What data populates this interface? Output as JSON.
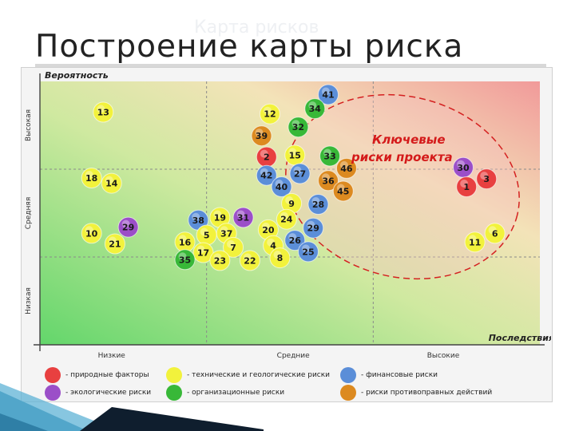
{
  "header": {
    "ghost_title": "Карта рисков",
    "title": "Построение карты риска"
  },
  "chart_data": {
    "type": "scatter",
    "ylabel": "Вероятность",
    "xlabel": "Последствия",
    "x_categories": [
      "Низкие",
      "Средние",
      "Высокие"
    ],
    "y_categories": [
      "Низкая",
      "Средняя",
      "Высокая"
    ],
    "annotation": "Ключевые риски проекта",
    "categories": {
      "natural": {
        "label": "- природные факторы",
        "color": "#e84040"
      },
      "technical": {
        "label": "- технические и геологические риски",
        "color": "#f2f23c"
      },
      "financial": {
        "label": "- финансовые риски",
        "color": "#5b8ed8"
      },
      "ecological": {
        "label": "- экологические риски",
        "color": "#9b4fc8"
      },
      "organizational": {
        "label": "- организационные риски",
        "color": "#38b838"
      },
      "counteraction": {
        "label": "- риски противоправных действий",
        "color": "#dc8a20"
      }
    },
    "points": [
      {
        "id": "41",
        "cat": "financial",
        "x": 1.73,
        "y": 2.85
      },
      {
        "id": "34",
        "cat": "organizational",
        "x": 1.65,
        "y": 2.69
      },
      {
        "id": "13",
        "cat": "technical",
        "x": 0.38,
        "y": 2.65
      },
      {
        "id": "12",
        "cat": "technical",
        "x": 1.38,
        "y": 2.63
      },
      {
        "id": "32",
        "cat": "organizational",
        "x": 1.55,
        "y": 2.48
      },
      {
        "id": "39",
        "cat": "counteraction",
        "x": 1.33,
        "y": 2.38
      },
      {
        "id": "15",
        "cat": "technical",
        "x": 1.53,
        "y": 2.16
      },
      {
        "id": "33",
        "cat": "organizational",
        "x": 1.74,
        "y": 2.15
      },
      {
        "id": "2",
        "cat": "natural",
        "x": 1.36,
        "y": 2.14
      },
      {
        "id": "30",
        "cat": "ecological",
        "x": 2.54,
        "y": 2.02
      },
      {
        "id": "46",
        "cat": "counteraction",
        "x": 1.84,
        "y": 2.01
      },
      {
        "id": "27",
        "cat": "financial",
        "x": 1.56,
        "y": 1.95
      },
      {
        "id": "42",
        "cat": "financial",
        "x": 1.36,
        "y": 1.93
      },
      {
        "id": "18",
        "cat": "technical",
        "x": 0.31,
        "y": 1.9
      },
      {
        "id": "3",
        "cat": "natural",
        "x": 2.68,
        "y": 1.89
      },
      {
        "id": "36",
        "cat": "counteraction",
        "x": 1.73,
        "y": 1.87
      },
      {
        "id": "14",
        "cat": "technical",
        "x": 0.43,
        "y": 1.84
      },
      {
        "id": "40",
        "cat": "financial",
        "x": 1.45,
        "y": 1.8
      },
      {
        "id": "1",
        "cat": "natural",
        "x": 2.56,
        "y": 1.8
      },
      {
        "id": "45",
        "cat": "counteraction",
        "x": 1.82,
        "y": 1.75
      },
      {
        "id": "9",
        "cat": "technical",
        "x": 1.51,
        "y": 1.61
      },
      {
        "id": "28",
        "cat": "financial",
        "x": 1.67,
        "y": 1.6
      },
      {
        "id": "19",
        "cat": "technical",
        "x": 1.08,
        "y": 1.45
      },
      {
        "id": "31",
        "cat": "ecological",
        "x": 1.22,
        "y": 1.45
      },
      {
        "id": "38",
        "cat": "financial",
        "x": 0.95,
        "y": 1.42
      },
      {
        "id": "24",
        "cat": "technical",
        "x": 1.48,
        "y": 1.43
      },
      {
        "id": "29",
        "cat": "ecological",
        "x": 0.53,
        "y": 1.34
      },
      {
        "id": "29",
        "cat": "financial",
        "x": 1.64,
        "y": 1.33
      },
      {
        "id": "20",
        "cat": "technical",
        "x": 1.37,
        "y": 1.31
      },
      {
        "id": "6",
        "cat": "technical",
        "x": 2.73,
        "y": 1.27
      },
      {
        "id": "37",
        "cat": "technical",
        "x": 1.12,
        "y": 1.27
      },
      {
        "id": "10",
        "cat": "technical",
        "x": 0.31,
        "y": 1.27
      },
      {
        "id": "5",
        "cat": "technical",
        "x": 1.0,
        "y": 1.25
      },
      {
        "id": "26",
        "cat": "financial",
        "x": 1.53,
        "y": 1.19
      },
      {
        "id": "16",
        "cat": "technical",
        "x": 0.87,
        "y": 1.17
      },
      {
        "id": "11",
        "cat": "technical",
        "x": 2.61,
        "y": 1.17
      },
      {
        "id": "21",
        "cat": "technical",
        "x": 0.45,
        "y": 1.15
      },
      {
        "id": "4",
        "cat": "technical",
        "x": 1.4,
        "y": 1.13
      },
      {
        "id": "7",
        "cat": "technical",
        "x": 1.16,
        "y": 1.11
      },
      {
        "id": "17",
        "cat": "technical",
        "x": 0.98,
        "y": 1.05
      },
      {
        "id": "25",
        "cat": "financial",
        "x": 1.61,
        "y": 1.06
      },
      {
        "id": "35",
        "cat": "organizational",
        "x": 0.87,
        "y": 0.97
      },
      {
        "id": "23",
        "cat": "technical",
        "x": 1.08,
        "y": 0.96
      },
      {
        "id": "22",
        "cat": "technical",
        "x": 1.26,
        "y": 0.96
      },
      {
        "id": "8",
        "cat": "technical",
        "x": 1.44,
        "y": 0.99
      }
    ],
    "legend_order": [
      "natural",
      "technical",
      "financial",
      "ecological",
      "organizational",
      "counteraction"
    ]
  }
}
